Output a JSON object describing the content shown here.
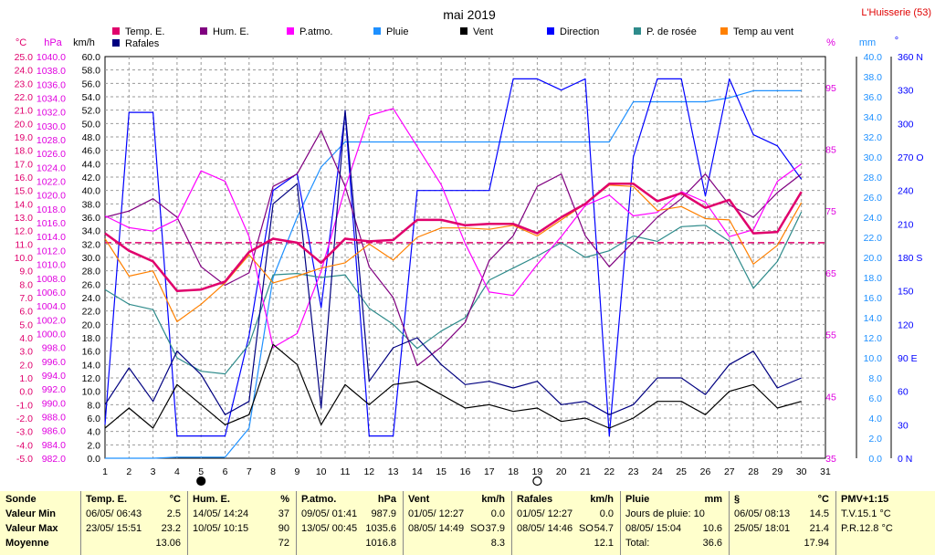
{
  "header": {
    "title": "mai 2019",
    "station": "L'Huisserie (53)"
  },
  "axis_units": {
    "temp": "°C",
    "pressure": "hPa",
    "wind": "km/h",
    "humidity": "%",
    "rain": "mm",
    "direction": "°"
  },
  "legend": [
    {
      "label": "Temp. E.",
      "color": "#e0006c"
    },
    {
      "label": "Hum. E.",
      "color": "#800080"
    },
    {
      "label": "P.atmo.",
      "color": "#ff00ff"
    },
    {
      "label": "Pluie",
      "color": "#1e90ff"
    },
    {
      "label": "Vent",
      "color": "#000000"
    },
    {
      "label": "Direction",
      "color": "#0000ff"
    },
    {
      "label": "P. de rosée",
      "color": "#2e8b8b"
    },
    {
      "label": "Temp au vent",
      "color": "#ff8000"
    },
    {
      "label": "Rafales",
      "color": "#000080"
    }
  ],
  "moon_phases": [
    {
      "day": 5,
      "phase": "new"
    },
    {
      "day": 19,
      "phase": "full"
    }
  ],
  "chart_data": {
    "type": "line",
    "title": "mai 2019",
    "x": [
      1,
      2,
      3,
      4,
      5,
      6,
      7,
      8,
      9,
      10,
      11,
      12,
      13,
      14,
      15,
      16,
      17,
      18,
      19,
      20,
      21,
      22,
      23,
      24,
      25,
      26,
      27,
      28,
      29,
      30
    ],
    "xlim": [
      1,
      31
    ],
    "axes": {
      "temp": {
        "ylim": [
          -5,
          25
        ],
        "step": 1
      },
      "pressure": {
        "ylim": [
          982,
          1040
        ],
        "step": 2
      },
      "wind": {
        "ylim": [
          0,
          60
        ],
        "step": 2
      },
      "humidity": {
        "ylim": [
          35,
          100
        ],
        "ticks": [
          35,
          45,
          55,
          65,
          75,
          85,
          95
        ]
      },
      "rain": {
        "ylim": [
          0,
          40
        ],
        "step": 2
      },
      "direction": {
        "ylim": [
          0,
          360
        ],
        "ticks": [
          0,
          30,
          60,
          90,
          120,
          150,
          180,
          210,
          240,
          270,
          300,
          330,
          360
        ],
        "labels": [
          "0 N",
          "30",
          "60",
          "90 E",
          "120",
          "150",
          "180 S",
          "210",
          "240",
          "270 O",
          "300",
          "330",
          "360 N"
        ]
      }
    },
    "reference_line": {
      "axis": "temp",
      "value": 11.1,
      "color": "#e0006c"
    },
    "series": [
      {
        "name": "Temp. E.",
        "axis": "temp",
        "color": "#e0006c",
        "values": [
          11.8,
          10.5,
          9.7,
          7.5,
          7.6,
          8.2,
          10.4,
          11.4,
          11.1,
          9.6,
          11.4,
          11.2,
          11.3,
          12.8,
          12.8,
          12.4,
          12.5,
          12.5,
          11.8,
          13.0,
          14.0,
          15.5,
          15.5,
          14.2,
          14.8,
          13.7,
          14.3,
          11.8,
          11.9,
          14.9
        ]
      },
      {
        "name": "Hum. E.",
        "axis": "humidity",
        "color": "#800080",
        "values": [
          74,
          75,
          77,
          74,
          66,
          63,
          65,
          79,
          81,
          88,
          79,
          66,
          61,
          50,
          53,
          57,
          67,
          71,
          79,
          81,
          71,
          66,
          70,
          74,
          77,
          81,
          76,
          74,
          78,
          81
        ]
      },
      {
        "name": "P.atmo.",
        "axis": "pressure",
        "color": "#ff00ff",
        "values": [
          1017.0,
          1015.3,
          1014.8,
          1016.5,
          1023.5,
          1022.0,
          1014.0,
          998.0,
          1000.0,
          1009.0,
          1021.0,
          1031.5,
          1032.5,
          1027.0,
          1021.5,
          1013.0,
          1006.0,
          1005.5,
          1010.0,
          1014.0,
          1018.5,
          1020.0,
          1017.0,
          1017.5,
          1020.5,
          1019.0,
          1014.0,
          1015.0,
          1022.0,
          1024.5
        ]
      },
      {
        "name": "Pluie",
        "axis": "rain",
        "color": "#1e90ff",
        "values": [
          0,
          0,
          0,
          0.1,
          0.1,
          0.1,
          3.0,
          18.0,
          24.0,
          29.0,
          31.5,
          31.5,
          31.5,
          31.5,
          31.5,
          31.5,
          31.5,
          31.5,
          31.5,
          31.5,
          31.5,
          31.5,
          35.5,
          35.5,
          35.5,
          35.5,
          35.9,
          36.6,
          36.6,
          36.6
        ]
      },
      {
        "name": "Vent",
        "axis": "wind",
        "color": "#000000",
        "values": [
          4.5,
          7.5,
          4.5,
          11.0,
          8.0,
          5.0,
          6.5,
          17.0,
          14.0,
          5.0,
          11.0,
          8.0,
          11.0,
          11.5,
          9.5,
          7.5,
          8.0,
          7.0,
          7.5,
          5.5,
          6.0,
          4.5,
          6.0,
          8.5,
          8.5,
          6.5,
          10.0,
          11.0,
          7.5,
          8.5
        ]
      },
      {
        "name": "Direction",
        "axis": "direction",
        "color": "#0000ff",
        "values": [
          30,
          310,
          310,
          20,
          20,
          20,
          110,
          240,
          255,
          135,
          310,
          20,
          20,
          240,
          240,
          240,
          240,
          340,
          340,
          330,
          340,
          20,
          270,
          340,
          340,
          235,
          340,
          290,
          280,
          250
        ]
      },
      {
        "name": "P. de rosée",
        "axis": "temp",
        "color": "#2e8b8b",
        "values": [
          7.6,
          6.5,
          6.1,
          2.5,
          1.5,
          1.3,
          3.5,
          8.7,
          8.8,
          8.5,
          8.7,
          6.2,
          5.0,
          3.2,
          4.5,
          5.5,
          8.3,
          9.2,
          10.1,
          11.1,
          10.0,
          10.5,
          11.6,
          11.2,
          12.3,
          12.4,
          11.2,
          7.7,
          9.7,
          13.4
        ]
      },
      {
        "name": "Temp au vent",
        "axis": "temp",
        "color": "#ff8000",
        "values": [
          11.4,
          8.6,
          9.0,
          5.2,
          6.5,
          8.1,
          10.2,
          8.1,
          8.6,
          9.2,
          9.6,
          11.0,
          9.8,
          11.5,
          12.2,
          12.2,
          12.1,
          12.4,
          11.6,
          12.8,
          14.0,
          15.4,
          15.3,
          13.5,
          13.8,
          12.9,
          12.8,
          9.5,
          10.9,
          14.1
        ]
      },
      {
        "name": "Rafales",
        "axis": "wind",
        "color": "#000080",
        "values": [
          8.0,
          13.5,
          8.5,
          16.0,
          12.5,
          6.5,
          8.5,
          38.0,
          41.0,
          7.5,
          52.0,
          11.5,
          16.5,
          18.0,
          14.0,
          11.0,
          11.5,
          10.5,
          11.5,
          8.0,
          8.5,
          6.5,
          8.0,
          12.0,
          12.0,
          9.5,
          14.0,
          16.0,
          10.5,
          12.0
        ]
      }
    ]
  },
  "stats": {
    "row_labels": [
      "Sonde",
      "Valeur Min",
      "Valeur Max",
      "Moyenne"
    ],
    "temp": {
      "title": "Temp. E.",
      "unit": "°C",
      "min_when": "06/05/ 06:43",
      "min": "2.5",
      "max_when": "23/05/ 15:51",
      "max": "23.2",
      "avg": "13.06"
    },
    "hum": {
      "title": "Hum. E.",
      "unit": "%",
      "min_when": "14/05/ 14:24",
      "min": "37",
      "max_when": "10/05/ 10:15",
      "max": "90",
      "avg": "72"
    },
    "patm": {
      "title": "P.atmo.",
      "unit": "hPa",
      "min_when": "09/05/ 01:41",
      "min": "987.9",
      "max_when": "13/05/ 00:45",
      "max": "1035.6",
      "avg": "1016.8"
    },
    "vent": {
      "title": "Vent",
      "unit": "km/h",
      "min_when": "01/05/ 12:27",
      "min": "0.0",
      "max_when": "08/05/ 14:49",
      "max_dir": "SO",
      "max": "37.9",
      "avg": "8.3"
    },
    "rafales": {
      "title": "Rafales",
      "unit": "km/h",
      "min_when": "01/05/ 12:27",
      "min": "0.0",
      "max_when": "08/05/ 14:46",
      "max_dir": "SO",
      "max": "54.7",
      "avg": "12.1"
    },
    "pluie": {
      "title": "Pluie",
      "unit": "mm",
      "days_label": "Jours de pluie: 10",
      "max_when": "08/05/ 15:04",
      "max": "10.6",
      "total_label": "Total:",
      "total": "36.6"
    },
    "dew": {
      "title": "§",
      "unit": "°C",
      "min_when": "06/05/ 08:13",
      "min": "14.5",
      "max_when": "25/05/ 18:01",
      "max": "21.4",
      "avg": "17.94"
    },
    "pmv": {
      "title": "PMV+1:15",
      "line1": "T.V.15.1 °C",
      "line2": "P.R.12.8 °C"
    }
  }
}
